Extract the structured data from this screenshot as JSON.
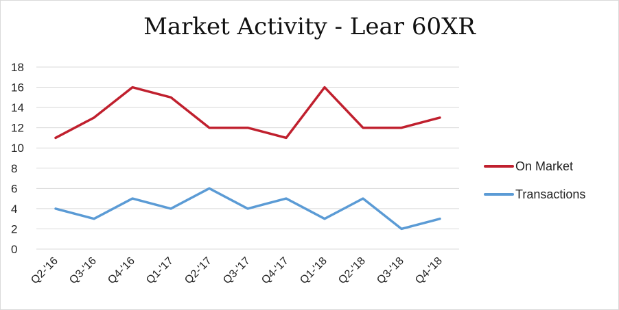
{
  "chart_data": {
    "type": "line",
    "title": "Market Activity - Lear 60XR",
    "xlabel": "",
    "ylabel": "",
    "x": [
      "Q2-'16",
      "Q3-'16",
      "Q4-'16",
      "Q1-'17",
      "Q2-'17",
      "Q3-'17",
      "Q4-'17",
      "Q1-'18",
      "Q2-'18",
      "Q3-'18",
      "Q4-'18"
    ],
    "ylim": [
      0,
      18
    ],
    "yticks": [
      0,
      2,
      4,
      6,
      8,
      10,
      12,
      14,
      16,
      18
    ],
    "grid": true,
    "legend_position": "right",
    "series": [
      {
        "name": "On Market",
        "color": "#c0202e",
        "values": [
          11,
          13,
          16,
          15,
          12,
          12,
          11,
          16,
          12,
          12,
          13
        ]
      },
      {
        "name": "Transactions",
        "color": "#5b9bd5",
        "values": [
          4,
          3,
          5,
          4,
          6,
          4,
          5,
          3,
          5,
          2,
          3
        ]
      }
    ]
  }
}
